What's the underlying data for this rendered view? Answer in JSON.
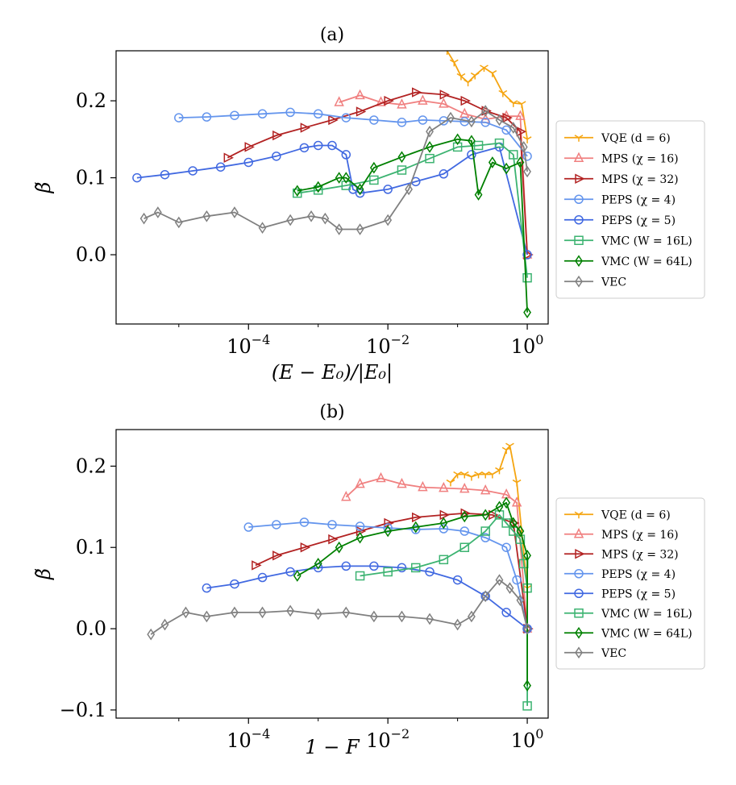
{
  "chart_data": [
    {
      "type": "line",
      "panel": "(a)",
      "title": "(a)",
      "xlabel": "(E − E₀)/|E₀|",
      "ylabel": "β̃",
      "xscale": "log",
      "xlim_log10": [
        -5.9,
        0.3
      ],
      "ylim": [
        -0.09,
        0.265
      ],
      "xticks": [
        {
          "value": -4,
          "base": "10",
          "exp": "−4"
        },
        {
          "value": -2,
          "base": "10",
          "exp": "−2"
        },
        {
          "value": 0,
          "base": "10",
          "exp": "0"
        }
      ],
      "yticks": [
        {
          "value": 0.0,
          "label": "0.0"
        },
        {
          "value": 0.1,
          "label": "0.1"
        },
        {
          "value": 0.2,
          "label": "0.2"
        }
      ],
      "legend_position": "right",
      "series": [
        {
          "name": "VQE",
          "param": "(d = 6)",
          "color": "#f5a511",
          "marker": "tri_down",
          "x": [
            -1.15,
            -1.05,
            -0.95,
            -0.85,
            -0.75,
            -0.62,
            -0.5,
            -0.35,
            -0.2,
            -0.08,
            0.0
          ],
          "y": [
            0.265,
            0.25,
            0.232,
            0.224,
            0.233,
            0.243,
            0.236,
            0.21,
            0.197,
            0.196,
            0.15
          ]
        },
        {
          "name": "MPS",
          "param": "(χ = 16)",
          "color": "#f08080",
          "marker": "triangle_up",
          "x": [
            -2.7,
            -2.4,
            -2.1,
            -1.8,
            -1.5,
            -1.2,
            -0.9,
            -0.6,
            -0.3,
            -0.1,
            0.0
          ],
          "y": [
            0.198,
            0.207,
            0.198,
            0.195,
            0.2,
            0.196,
            0.183,
            0.176,
            0.18,
            0.18,
            0.0
          ]
        },
        {
          "name": "MPS",
          "param": "(χ = 32)",
          "color": "#b22222",
          "marker": "triangle_right",
          "x": [
            -4.3,
            -4.0,
            -3.6,
            -3.2,
            -2.8,
            -2.4,
            -2.0,
            -1.6,
            -1.2,
            -0.9,
            -0.6,
            -0.3,
            -0.1,
            0.0
          ],
          "y": [
            0.126,
            0.14,
            0.155,
            0.165,
            0.175,
            0.186,
            0.2,
            0.211,
            0.208,
            0.2,
            0.187,
            0.178,
            0.16,
            0.0
          ]
        },
        {
          "name": "PEPS",
          "param": "(χ = 4)",
          "color": "#6495ed",
          "marker": "circle",
          "x": [
            -5.0,
            -4.6,
            -4.2,
            -3.8,
            -3.4,
            -3.0,
            -2.6,
            -2.2,
            -1.8,
            -1.5,
            -1.2,
            -0.9,
            -0.6,
            -0.3,
            0.0
          ],
          "y": [
            0.178,
            0.179,
            0.181,
            0.183,
            0.185,
            0.183,
            0.178,
            0.175,
            0.172,
            0.175,
            0.174,
            0.173,
            0.172,
            0.162,
            0.128
          ]
        },
        {
          "name": "PEPS",
          "param": "(χ = 5)",
          "color": "#4169e1",
          "marker": "circle",
          "x": [
            -5.6,
            -5.2,
            -4.8,
            -4.4,
            -4.0,
            -3.6,
            -3.2,
            -3.0,
            -2.8,
            -2.6,
            -2.5,
            -2.4,
            -2.0,
            -1.6,
            -1.2,
            -0.8,
            -0.4,
            0.0
          ],
          "y": [
            0.1,
            0.104,
            0.109,
            0.114,
            0.12,
            0.128,
            0.139,
            0.142,
            0.142,
            0.13,
            0.085,
            0.08,
            0.085,
            0.095,
            0.105,
            0.13,
            0.14,
            0.0
          ]
        },
        {
          "name": "VMC",
          "param": "(W = 16L)",
          "color": "#3cb371",
          "marker": "square",
          "x": [
            -3.3,
            -3.0,
            -2.6,
            -2.2,
            -1.8,
            -1.4,
            -1.0,
            -0.7,
            -0.4,
            -0.2,
            0.0
          ],
          "y": [
            0.08,
            0.084,
            0.09,
            0.097,
            0.11,
            0.125,
            0.14,
            0.142,
            0.145,
            0.13,
            -0.03
          ]
        },
        {
          "name": "VMC",
          "param": "(W = 64L)",
          "color": "#008000",
          "marker": "diamond",
          "x": [
            -3.3,
            -3.0,
            -2.7,
            -2.6,
            -2.4,
            -2.2,
            -1.8,
            -1.4,
            -1.0,
            -0.8,
            -0.7,
            -0.5,
            -0.3,
            -0.1,
            0.0
          ],
          "y": [
            0.083,
            0.088,
            0.1,
            0.1,
            0.085,
            0.113,
            0.127,
            0.14,
            0.15,
            0.148,
            0.078,
            0.12,
            0.112,
            0.12,
            -0.075
          ]
        },
        {
          "name": "VEC",
          "param": "",
          "color": "#808080",
          "marker": "diamond",
          "x": [
            -5.5,
            -5.3,
            -5.0,
            -4.6,
            -4.2,
            -3.8,
            -3.4,
            -3.1,
            -2.9,
            -2.7,
            -2.4,
            -2.0,
            -1.7,
            -1.4,
            -1.1,
            -0.8,
            -0.6,
            -0.4,
            -0.2,
            -0.05,
            0.0
          ],
          "y": [
            0.047,
            0.055,
            0.042,
            0.05,
            0.055,
            0.035,
            0.045,
            0.05,
            0.047,
            0.033,
            0.033,
            0.045,
            0.085,
            0.16,
            0.178,
            0.173,
            0.187,
            0.175,
            0.165,
            0.14,
            0.108
          ]
        }
      ]
    },
    {
      "type": "line",
      "panel": "(b)",
      "title": "(b)",
      "xlabel": "1 − F",
      "ylabel": "β̃",
      "xscale": "log",
      "xlim_log10": [
        -5.9,
        0.3
      ],
      "ylim": [
        -0.11,
        0.245
      ],
      "xticks": [
        {
          "value": -4,
          "base": "10",
          "exp": "−4"
        },
        {
          "value": -2,
          "base": "10",
          "exp": "−2"
        },
        {
          "value": 0,
          "base": "10",
          "exp": "0"
        }
      ],
      "yticks": [
        {
          "value": -0.1,
          "label": "−0.1"
        },
        {
          "value": 0.0,
          "label": "0.0"
        },
        {
          "value": 0.1,
          "label": "0.1"
        },
        {
          "value": 0.2,
          "label": "0.2"
        }
      ],
      "legend_position": "right",
      "series": [
        {
          "name": "VQE",
          "param": "(d = 6)",
          "color": "#f5a511",
          "marker": "tri_down",
          "x": [
            -1.1,
            -1.0,
            -0.9,
            -0.8,
            -0.7,
            -0.6,
            -0.5,
            -0.4,
            -0.3,
            -0.25,
            -0.15,
            0.0
          ],
          "y": [
            0.18,
            0.19,
            0.19,
            0.187,
            0.19,
            0.19,
            0.19,
            0.195,
            0.22,
            0.225,
            0.18,
            0.05
          ]
        },
        {
          "name": "MPS",
          "param": "(χ = 16)",
          "color": "#f08080",
          "marker": "triangle_up",
          "x": [
            -2.6,
            -2.4,
            -2.1,
            -1.8,
            -1.5,
            -1.2,
            -0.9,
            -0.6,
            -0.3,
            -0.15,
            0.0
          ],
          "y": [
            0.162,
            0.178,
            0.185,
            0.178,
            0.174,
            0.173,
            0.172,
            0.17,
            0.165,
            0.155,
            0.0
          ]
        },
        {
          "name": "MPS",
          "param": "(χ = 32)",
          "color": "#b22222",
          "marker": "triangle_right",
          "x": [
            -3.9,
            -3.6,
            -3.2,
            -2.8,
            -2.4,
            -2.0,
            -1.6,
            -1.2,
            -0.9,
            -0.5,
            -0.2,
            0.0
          ],
          "y": [
            0.078,
            0.09,
            0.1,
            0.11,
            0.12,
            0.13,
            0.137,
            0.14,
            0.142,
            0.14,
            0.13,
            0.0
          ]
        },
        {
          "name": "PEPS",
          "param": "(χ = 4)",
          "color": "#6495ed",
          "marker": "circle",
          "x": [
            -4.0,
            -3.6,
            -3.2,
            -2.8,
            -2.4,
            -2.0,
            -1.6,
            -1.2,
            -0.9,
            -0.6,
            -0.3,
            -0.15,
            0.0
          ],
          "y": [
            0.125,
            0.128,
            0.131,
            0.128,
            0.126,
            0.124,
            0.122,
            0.123,
            0.12,
            0.112,
            0.1,
            0.06,
            0.0
          ]
        },
        {
          "name": "PEPS",
          "param": "(χ = 5)",
          "color": "#4169e1",
          "marker": "circle",
          "x": [
            -4.6,
            -4.2,
            -3.8,
            -3.4,
            -3.0,
            -2.6,
            -2.2,
            -1.8,
            -1.4,
            -1.0,
            -0.6,
            -0.3,
            0.0
          ],
          "y": [
            0.05,
            0.055,
            0.063,
            0.07,
            0.075,
            0.077,
            0.077,
            0.075,
            0.07,
            0.06,
            0.04,
            0.02,
            0.0
          ]
        },
        {
          "name": "VMC",
          "param": "(W = 16L)",
          "color": "#3cb371",
          "marker": "square",
          "x": [
            -2.4,
            -2.0,
            -1.6,
            -1.2,
            -0.9,
            -0.6,
            -0.4,
            -0.3,
            -0.2,
            -0.1,
            -0.05,
            0.0,
            0.0
          ],
          "y": [
            0.065,
            0.07,
            0.075,
            0.085,
            0.1,
            0.12,
            0.14,
            0.13,
            0.12,
            0.11,
            0.08,
            0.05,
            -0.095
          ]
        },
        {
          "name": "VMC",
          "param": "(W = 64L)",
          "color": "#008000",
          "marker": "diamond",
          "x": [
            -3.3,
            -3.0,
            -2.7,
            -2.4,
            -2.0,
            -1.6,
            -1.2,
            -0.9,
            -0.6,
            -0.4,
            -0.3,
            -0.2,
            -0.1,
            0.0,
            0.0
          ],
          "y": [
            0.065,
            0.08,
            0.1,
            0.112,
            0.12,
            0.125,
            0.13,
            0.138,
            0.14,
            0.15,
            0.155,
            0.13,
            0.12,
            0.09,
            -0.07
          ]
        },
        {
          "name": "VEC",
          "param": "",
          "color": "#808080",
          "marker": "diamond",
          "x": [
            -5.4,
            -5.2,
            -4.9,
            -4.6,
            -4.2,
            -3.8,
            -3.4,
            -3.0,
            -2.6,
            -2.2,
            -1.8,
            -1.4,
            -1.0,
            -0.8,
            -0.6,
            -0.4,
            -0.25,
            -0.1,
            0.0
          ],
          "y": [
            -0.007,
            0.005,
            0.02,
            0.015,
            0.02,
            0.02,
            0.022,
            0.018,
            0.02,
            0.015,
            0.015,
            0.012,
            0.005,
            0.015,
            0.04,
            0.06,
            0.05,
            0.035,
            0.0
          ]
        }
      ]
    }
  ]
}
